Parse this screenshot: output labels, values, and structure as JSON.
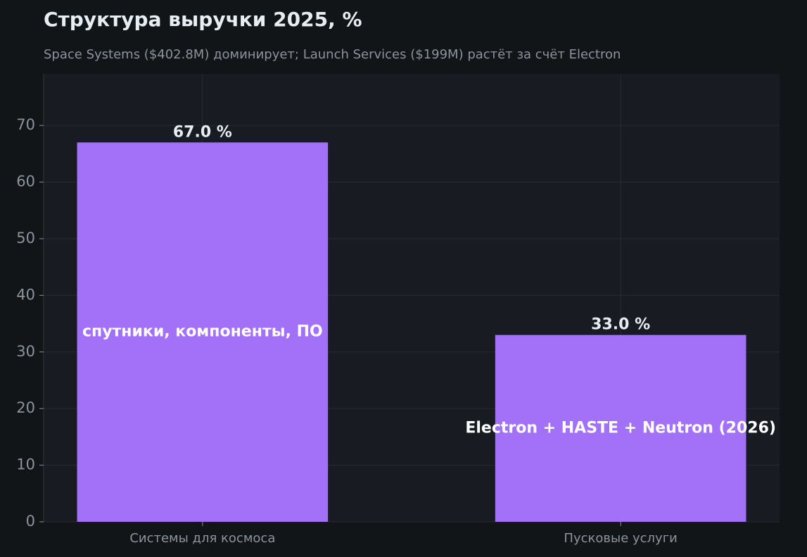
{
  "chart_data": {
    "type": "bar",
    "title": "Структура выручки 2025, %",
    "subtitle": "Space Systems ($402.8M) доминирует; Launch Services ($199M) растёт за счёт Electron",
    "categories": [
      "Системы для космоса",
      "Пусковые услуги"
    ],
    "values": [
      67.0,
      33.0
    ],
    "value_labels": [
      "67.0 %",
      "33.0 %"
    ],
    "annotations": [
      "спутники, компоненты, ПО",
      "Electron + HASTE + Neutron (2026)"
    ],
    "color": "#a371f7",
    "ylim": [
      0,
      79.1
    ],
    "yticks": [
      0,
      10,
      20,
      30,
      40,
      50,
      60,
      70
    ],
    "grid": true
  }
}
